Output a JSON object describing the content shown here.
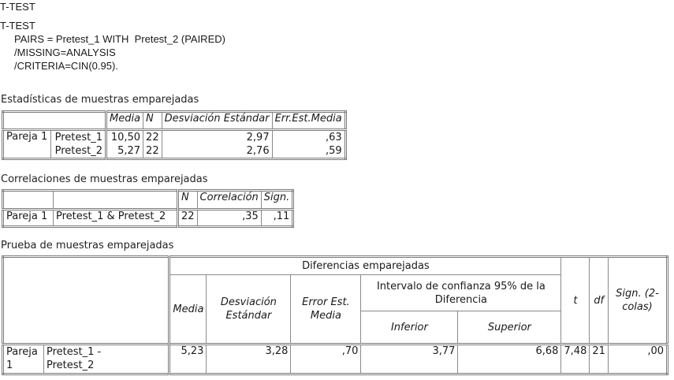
{
  "heading": "T-TEST",
  "syntax": [
    "T-TEST",
    "     PAIRS = Pretest_1 WITH  Pretest_2 (PAIRED)",
    "     /MISSING=ANALYSIS",
    "     /CRITERIA=CIN(0.95)."
  ],
  "t1": {
    "caption": "Estadísticas de muestras emparejadas",
    "headers": [
      "Media",
      "N",
      "Desviación Estándar",
      "Err.Est.Media"
    ],
    "group": "Pareja 1",
    "rows": [
      {
        "var": "Pretest_1",
        "media": "10,50",
        "n": "22",
        "sd": "2,97",
        "se": ",63"
      },
      {
        "var": "Pretest_2",
        "media": "5,27",
        "n": "22",
        "sd": "2,76",
        "se": ",59"
      }
    ]
  },
  "t2": {
    "caption": "Correlaciones de muestras emparejadas",
    "headers": [
      "N",
      "Correlación",
      "Sign."
    ],
    "group": "Pareja 1",
    "pair": "Pretest_1 & Pretest_2",
    "n": "22",
    "corr": ",35",
    "sig": ",11"
  },
  "t3": {
    "caption": "Prueba de muestras emparejadas",
    "diff_header": "Diferencias emparejadas",
    "ci_header": [
      "Intervalo de confianza 95% de la",
      "Diferencia"
    ],
    "headers": {
      "media": "Media",
      "sd": [
        "Desviación",
        "Estándar"
      ],
      "se": [
        "Error Est.",
        "Media"
      ],
      "inf": "Inferior",
      "sup": "Superior",
      "t": "t",
      "df": "df",
      "sig": [
        "Sign. (2-",
        "colas)"
      ]
    },
    "group": [
      "Pareja",
      "1"
    ],
    "pair": [
      "Pretest_1 -",
      "Pretest_2"
    ],
    "values": {
      "media": "5,23",
      "sd": "3,28",
      "se": ",70",
      "inf": "3,77",
      "sup": "6,68",
      "t": "7,48",
      "df": "21",
      "sig": ",00"
    }
  }
}
